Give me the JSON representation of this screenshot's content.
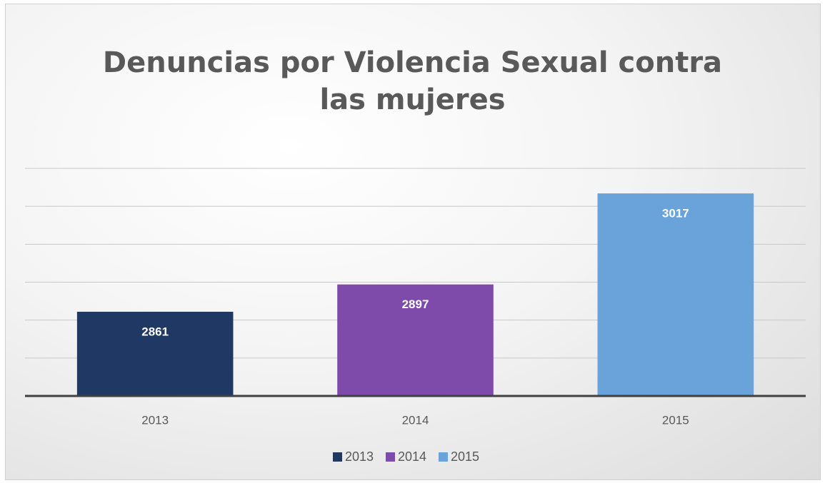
{
  "chart_data": {
    "type": "bar",
    "title": "Denuncias por Violencia Sexual contra las mujeres",
    "categories": [
      "2013",
      "2014",
      "2015"
    ],
    "values": [
      2861,
      2897,
      3017
    ],
    "colors": [
      "#203864",
      "#7f4bab",
      "#6aa3d9"
    ],
    "ylim": [
      2750,
      3050
    ],
    "yticks": [
      2750,
      2800,
      2850,
      2900,
      2950,
      3000,
      3050
    ],
    "grid": true,
    "legend": "bottom"
  }
}
